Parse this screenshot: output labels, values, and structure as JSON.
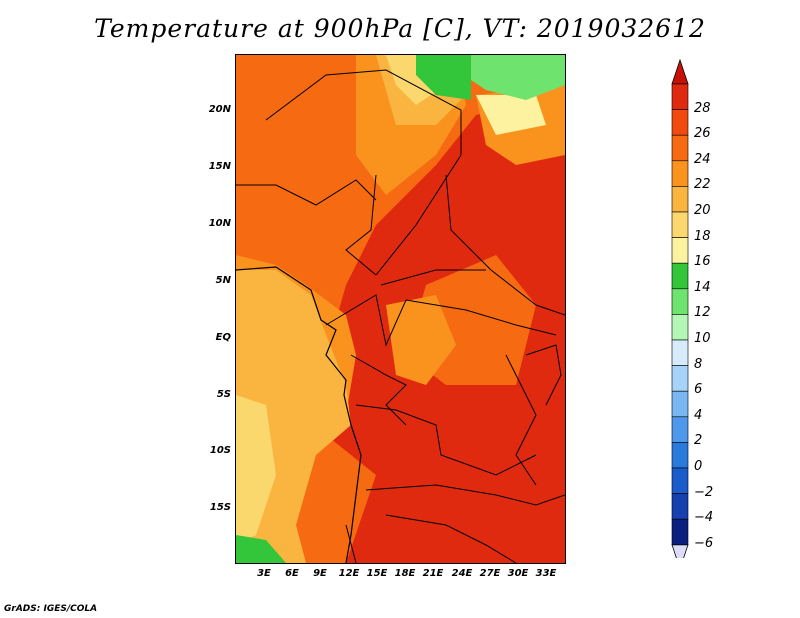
{
  "title": "Temperature at 900hPa [C], VT: 2019032612",
  "credit": "GrADS: IGES/COLA",
  "map": {
    "region": "Central Africa",
    "lon_range": [
      0,
      35
    ],
    "lat_range": [
      -20,
      24
    ],
    "lat_ticks": [
      "20N",
      "15N",
      "10N",
      "5N",
      "EQ",
      "5S",
      "10S",
      "15S"
    ],
    "lon_ticks": [
      "3E",
      "6E",
      "9E",
      "12E",
      "15E",
      "18E",
      "21E",
      "24E",
      "27E",
      "30E",
      "33E"
    ]
  },
  "colorbar": {
    "labels": [
      "28",
      "26",
      "24",
      "22",
      "20",
      "18",
      "16",
      "14",
      "12",
      "10",
      "8",
      "6",
      "4",
      "2",
      "0",
      "−2",
      "−4",
      "−6"
    ],
    "colors": [
      "#e02a10",
      "#f04a0e",
      "#f66a12",
      "#f9931e",
      "#f9b540",
      "#fbd86e",
      "#fdf2a0",
      "#33c63a",
      "#6ee46e",
      "#b4f7b4",
      "#d6ebfb",
      "#a6d3f7",
      "#79b6f2",
      "#4d98ea",
      "#2a79dc",
      "#1a5ccc",
      "#1640b0",
      "#0a1f80"
    ],
    "top_arrow_color": "#c81208",
    "bottom_arrow_color": "#dcdcf8"
  }
}
